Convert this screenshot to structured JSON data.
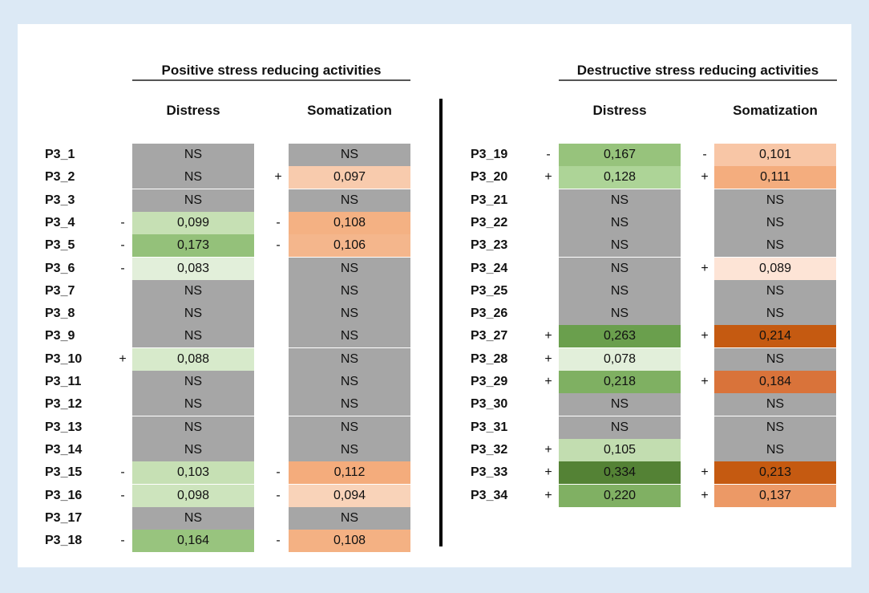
{
  "left_section": {
    "title": "Positive stress reducing activities",
    "col_distress": "Distress",
    "col_somatization": "Somatization",
    "rows": [
      {
        "label": "P3_1",
        "d_sign": "",
        "d_val": "NS",
        "s_sign": "",
        "s_val": "NS",
        "d_color": "#a6a6a6",
        "s_color": "#a6a6a6"
      },
      {
        "label": "P3_2",
        "d_sign": "",
        "d_val": "NS",
        "s_sign": "+",
        "s_val": "0,097",
        "d_color": "#a6a6a6",
        "s_color": "#f8cbad"
      },
      {
        "label": "P3_3",
        "d_sign": "",
        "d_val": "NS",
        "s_sign": "",
        "s_val": "NS",
        "d_color": "#a6a6a6",
        "s_color": "#a6a6a6"
      },
      {
        "label": "P3_4",
        "d_sign": "-",
        "d_val": "0,099",
        "s_sign": "-",
        "s_val": "0,108",
        "d_color": "#c6e0b4",
        "s_color": "#f4b183"
      },
      {
        "label": "P3_5",
        "d_sign": "-",
        "d_val": "0,173",
        "s_sign": "-",
        "s_val": "0,106",
        "d_color": "#94c17a",
        "s_color": "#f4b68c"
      },
      {
        "label": "P3_6",
        "d_sign": "-",
        "d_val": "0,083",
        "s_sign": "",
        "s_val": "NS",
        "d_color": "#e2efda",
        "s_color": "#a6a6a6"
      },
      {
        "label": "P3_7",
        "d_sign": "",
        "d_val": "NS",
        "s_sign": "",
        "s_val": "NS",
        "d_color": "#a6a6a6",
        "s_color": "#a6a6a6"
      },
      {
        "label": "P3_8",
        "d_sign": "",
        "d_val": "NS",
        "s_sign": "",
        "s_val": "NS",
        "d_color": "#a6a6a6",
        "s_color": "#a6a6a6"
      },
      {
        "label": "P3_9",
        "d_sign": "",
        "d_val": "NS",
        "s_sign": "",
        "s_val": "NS",
        "d_color": "#a6a6a6",
        "s_color": "#a6a6a6"
      },
      {
        "label": "P3_10",
        "d_sign": "+",
        "d_val": "0,088",
        "s_sign": "",
        "s_val": "NS",
        "d_color": "#d7eacb",
        "s_color": "#a6a6a6"
      },
      {
        "label": "P3_11",
        "d_sign": "",
        "d_val": "NS",
        "s_sign": "",
        "s_val": "NS",
        "d_color": "#a6a6a6",
        "s_color": "#a6a6a6"
      },
      {
        "label": "P3_12",
        "d_sign": "",
        "d_val": "NS",
        "s_sign": "",
        "s_val": "NS",
        "d_color": "#a6a6a6",
        "s_color": "#a6a6a6"
      },
      {
        "label": "P3_13",
        "d_sign": "",
        "d_val": "NS",
        "s_sign": "",
        "s_val": "NS",
        "d_color": "#a6a6a6",
        "s_color": "#a6a6a6"
      },
      {
        "label": "P3_14",
        "d_sign": "",
        "d_val": "NS",
        "s_sign": "",
        "s_val": "NS",
        "d_color": "#a6a6a6",
        "s_color": "#a6a6a6"
      },
      {
        "label": "P3_15",
        "d_sign": "-",
        "d_val": "0,103",
        "s_sign": "-",
        "s_val": "0,112",
        "d_color": "#c6e0b4",
        "s_color": "#f4ac7c"
      },
      {
        "label": "P3_16",
        "d_sign": "-",
        "d_val": "0,098",
        "s_sign": "-",
        "s_val": "0,094",
        "d_color": "#cde4bd",
        "s_color": "#f9d3b9"
      },
      {
        "label": "P3_17",
        "d_sign": "",
        "d_val": "NS",
        "s_sign": "",
        "s_val": "NS",
        "d_color": "#a6a6a6",
        "s_color": "#a6a6a6"
      },
      {
        "label": "P3_18",
        "d_sign": "-",
        "d_val": "0,164",
        "s_sign": "-",
        "s_val": "0,108",
        "d_color": "#98c47e",
        "s_color": "#f4b183"
      }
    ]
  },
  "right_section": {
    "title": "Destructive stress reducing activities",
    "col_distress": "Distress",
    "col_somatization": "Somatization",
    "rows": [
      {
        "label": "P3_19",
        "d_sign": "-",
        "d_val": "0,167",
        "s_sign": "-",
        "s_val": "0,101",
        "d_color": "#97c37c",
        "s_color": "#f8c6a6"
      },
      {
        "label": "P3_20",
        "d_sign": "+",
        "d_val": "0,128",
        "s_sign": "+",
        "s_val": "0,111",
        "d_color": "#add497",
        "s_color": "#f4ad7e"
      },
      {
        "label": "P3_21",
        "d_sign": "",
        "d_val": "NS",
        "s_sign": "",
        "s_val": "NS",
        "d_color": "#a6a6a6",
        "s_color": "#a6a6a6"
      },
      {
        "label": "P3_22",
        "d_sign": "",
        "d_val": "NS",
        "s_sign": "",
        "s_val": "NS",
        "d_color": "#a6a6a6",
        "s_color": "#a6a6a6"
      },
      {
        "label": "P3_23",
        "d_sign": "",
        "d_val": "NS",
        "s_sign": "",
        "s_val": "NS",
        "d_color": "#a6a6a6",
        "s_color": "#a6a6a6"
      },
      {
        "label": "P3_24",
        "d_sign": "",
        "d_val": "NS",
        "s_sign": "+",
        "s_val": "0,089",
        "d_color": "#a6a6a6",
        "s_color": "#fde4d6"
      },
      {
        "label": "P3_25",
        "d_sign": "",
        "d_val": "NS",
        "s_sign": "",
        "s_val": "NS",
        "d_color": "#a6a6a6",
        "s_color": "#a6a6a6"
      },
      {
        "label": "P3_26",
        "d_sign": "",
        "d_val": "NS",
        "s_sign": "",
        "s_val": "NS",
        "d_color": "#a6a6a6",
        "s_color": "#a6a6a6"
      },
      {
        "label": "P3_27",
        "d_sign": "+",
        "d_val": "0,263",
        "s_sign": "+",
        "s_val": "0,214",
        "d_color": "#6a9f4d",
        "s_color": "#c55a11"
      },
      {
        "label": "P3_28",
        "d_sign": "+",
        "d_val": "0,078",
        "s_sign": "",
        "s_val": "NS",
        "d_color": "#e2efda",
        "s_color": "#a6a6a6"
      },
      {
        "label": "P3_29",
        "d_sign": "+",
        "d_val": "0,218",
        "s_sign": "+",
        "s_val": "0,184",
        "d_color": "#7fb062",
        "s_color": "#d9733a"
      },
      {
        "label": "P3_30",
        "d_sign": "",
        "d_val": "NS",
        "s_sign": "",
        "s_val": "NS",
        "d_color": "#a6a6a6",
        "s_color": "#a6a6a6"
      },
      {
        "label": "P3_31",
        "d_sign": "",
        "d_val": "NS",
        "s_sign": "",
        "s_val": "NS",
        "d_color": "#a6a6a6",
        "s_color": "#a6a6a6"
      },
      {
        "label": "P3_32",
        "d_sign": "+",
        "d_val": "0,105",
        "s_sign": "",
        "s_val": "NS",
        "d_color": "#c2ddb0",
        "s_color": "#a6a6a6"
      },
      {
        "label": "P3_33",
        "d_sign": "+",
        "d_val": "0,334",
        "s_sign": "+",
        "s_val": "0,213",
        "d_color": "#548235",
        "s_color": "#c55a11"
      },
      {
        "label": "P3_34",
        "d_sign": "+",
        "d_val": "0,220",
        "s_sign": "+",
        "s_val": "0,137",
        "d_color": "#80b063",
        "s_color": "#ec9966"
      }
    ]
  }
}
